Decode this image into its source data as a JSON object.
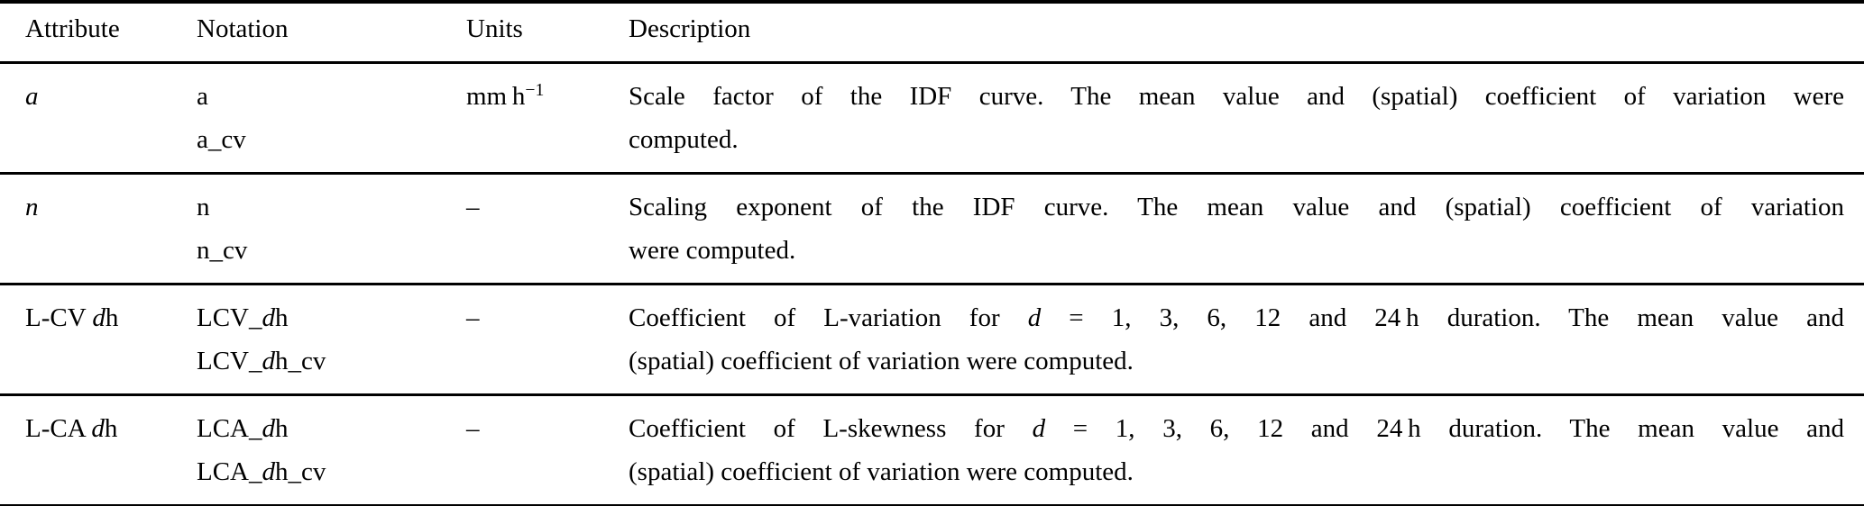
{
  "colors": {
    "text": "#000000",
    "background": "#ffffff",
    "rule": "#000000"
  },
  "table": {
    "headers": {
      "attribute": "Attribute",
      "notation": "Notation",
      "units": "Units",
      "description": "Description"
    },
    "rows": [
      {
        "attribute": [
          {
            "t": "a",
            "i": true
          }
        ],
        "notation": [
          [
            {
              "t": "a"
            }
          ],
          [
            {
              "t": "a_cv"
            }
          ]
        ],
        "units": [
          {
            "t": "mm h"
          },
          {
            "t": "−1",
            "sup": true
          }
        ],
        "description": [
          [
            {
              "t": "Scale factor of the IDF curve. The mean value and (spatial) coefficient of variation were"
            }
          ],
          [
            {
              "t": "computed."
            }
          ]
        ]
      },
      {
        "attribute": [
          {
            "t": "n",
            "i": true
          }
        ],
        "notation": [
          [
            {
              "t": "n"
            }
          ],
          [
            {
              "t": "n_cv"
            }
          ]
        ],
        "units": [
          {
            "t": "–"
          }
        ],
        "description": [
          [
            {
              "t": "Scaling exponent of the IDF curve. The mean value and (spatial) coefficient of variation"
            }
          ],
          [
            {
              "t": "were computed."
            }
          ]
        ]
      },
      {
        "attribute": [
          {
            "t": "L-CV "
          },
          {
            "t": "d",
            "i": true
          },
          {
            "t": "h"
          }
        ],
        "notation": [
          [
            {
              "t": "LCV_"
            },
            {
              "t": "d",
              "i": true
            },
            {
              "t": "h"
            }
          ],
          [
            {
              "t": "LCV_"
            },
            {
              "t": "d",
              "i": true
            },
            {
              "t": "h_cv"
            }
          ]
        ],
        "units": [
          {
            "t": "–"
          }
        ],
        "description": [
          [
            {
              "t": "Coefficient of L-variation for "
            },
            {
              "t": "d",
              "i": true
            },
            {
              "t": " = 1, 3, 6, 12 and 24 h duration. The mean value and"
            }
          ],
          [
            {
              "t": "(spatial) coefficient of variation were computed."
            }
          ]
        ]
      },
      {
        "attribute": [
          {
            "t": "L-CA "
          },
          {
            "t": "d",
            "i": true
          },
          {
            "t": "h"
          }
        ],
        "notation": [
          [
            {
              "t": "LCA_"
            },
            {
              "t": "d",
              "i": true
            },
            {
              "t": "h"
            }
          ],
          [
            {
              "t": "LCA_"
            },
            {
              "t": "d",
              "i": true
            },
            {
              "t": "h_cv"
            }
          ]
        ],
        "units": [
          {
            "t": "–"
          }
        ],
        "description": [
          [
            {
              "t": "Coefficient of L-skewness for "
            },
            {
              "t": "d",
              "i": true
            },
            {
              "t": " = 1, 3, 6, 12 and 24 h duration. The mean value and"
            }
          ],
          [
            {
              "t": "(spatial) coefficient of variation were computed."
            }
          ]
        ]
      }
    ]
  }
}
